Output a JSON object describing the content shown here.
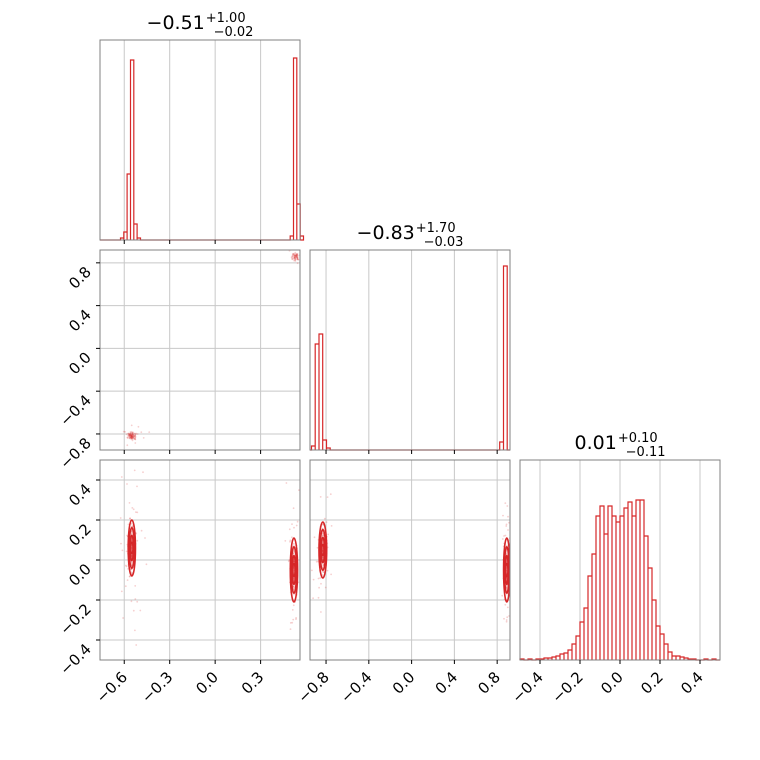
{
  "chart_data": {
    "type": "corner",
    "color": "#d62728",
    "grid": true,
    "parameters": [
      {
        "title": {
          "median": "−0.51",
          "plus": "+1.00",
          "minus": "−0.02"
        },
        "axis_range": [
          -0.76,
          0.56
        ],
        "x_ticks": [
          {
            "value": -0.6,
            "label": "−0.6"
          },
          {
            "value": -0.3,
            "label": "−0.3"
          },
          {
            "value": 0.0,
            "label": "0.0"
          },
          {
            "value": 0.3,
            "label": "0.3"
          }
        ],
        "histogram": {
          "bin_width": 0.022,
          "bins": [
            [
              -0.625,
              0.01
            ],
            [
              -0.603,
              0.04
            ],
            [
              -0.581,
              0.33
            ],
            [
              -0.559,
              0.9
            ],
            [
              -0.537,
              0.08
            ],
            [
              -0.515,
              0.01
            ],
            [
              0.495,
              0.02
            ],
            [
              0.517,
              0.91
            ],
            [
              0.539,
              0.18
            ],
            [
              0.561,
              0.02
            ]
          ]
        }
      },
      {
        "title": {
          "median": "−0.83",
          "plus": "+1.70",
          "minus": "−0.03"
        },
        "axis_range": [
          -0.95,
          0.92
        ],
        "x_ticks": [
          {
            "value": -0.8,
            "label": "−0.8"
          },
          {
            "value": -0.4,
            "label": "−0.4"
          },
          {
            "value": 0.0,
            "label": "0.0"
          },
          {
            "value": 0.4,
            "label": "0.4"
          },
          {
            "value": 0.8,
            "label": "0.8"
          }
        ],
        "y_ticks": [
          {
            "value": 0.8,
            "label": "0.8"
          },
          {
            "value": 0.4,
            "label": "0.4"
          },
          {
            "value": 0.0,
            "label": "0.0"
          },
          {
            "value": -0.4,
            "label": "−0.4"
          },
          {
            "value": -0.8,
            "label": "−0.8"
          }
        ],
        "histogram": {
          "bin_width": 0.035,
          "bins": [
            [
              -0.936,
              0.02
            ],
            [
              -0.901,
              0.53
            ],
            [
              -0.866,
              0.58
            ],
            [
              -0.831,
              0.05
            ],
            [
              -0.796,
              0.01
            ],
            [
              0.824,
              0.04
            ],
            [
              0.859,
              0.92
            ]
          ]
        }
      },
      {
        "title": {
          "median": "0.01",
          "plus": "+0.10",
          "minus": "−0.11"
        },
        "axis_range": [
          -0.5,
          0.5
        ],
        "x_ticks": [
          {
            "value": -0.4,
            "label": "−0.4"
          },
          {
            "value": -0.2,
            "label": "−0.2"
          },
          {
            "value": 0.0,
            "label": "0.0"
          },
          {
            "value": 0.2,
            "label": "0.2"
          },
          {
            "value": 0.4,
            "label": "0.4"
          }
        ],
        "y_ticks": [
          {
            "value": 0.4,
            "label": "0.4"
          },
          {
            "value": 0.2,
            "label": "0.2"
          },
          {
            "value": 0.0,
            "label": "0.0"
          },
          {
            "value": -0.2,
            "label": "−0.2"
          },
          {
            "value": -0.4,
            "label": "−0.4"
          }
        ],
        "histogram": {
          "bin_width": 0.02,
          "bins": [
            [
              -0.5,
              0.005
            ],
            [
              -0.48,
              0.0
            ],
            [
              -0.46,
              0.005
            ],
            [
              -0.44,
              0.0
            ],
            [
              -0.42,
              0.005
            ],
            [
              -0.4,
              0.005
            ],
            [
              -0.38,
              0.01
            ],
            [
              -0.36,
              0.01
            ],
            [
              -0.34,
              0.015
            ],
            [
              -0.32,
              0.02
            ],
            [
              -0.3,
              0.03
            ],
            [
              -0.28,
              0.035
            ],
            [
              -0.26,
              0.05
            ],
            [
              -0.24,
              0.08
            ],
            [
              -0.22,
              0.12
            ],
            [
              -0.2,
              0.19
            ],
            [
              -0.18,
              0.26
            ],
            [
              -0.16,
              0.42
            ],
            [
              -0.14,
              0.53
            ],
            [
              -0.12,
              0.72
            ],
            [
              -0.1,
              0.77
            ],
            [
              -0.08,
              0.63
            ],
            [
              -0.06,
              0.77
            ],
            [
              -0.04,
              0.72
            ],
            [
              -0.02,
              0.69
            ],
            [
              0.0,
              0.72
            ],
            [
              0.02,
              0.76
            ],
            [
              0.04,
              0.79
            ],
            [
              0.06,
              0.72
            ],
            [
              0.08,
              0.8
            ],
            [
              0.1,
              0.8
            ],
            [
              0.12,
              0.62
            ],
            [
              0.14,
              0.46
            ],
            [
              0.16,
              0.3
            ],
            [
              0.18,
              0.17
            ],
            [
              0.2,
              0.13
            ],
            [
              0.22,
              0.08
            ],
            [
              0.24,
              0.04
            ],
            [
              0.26,
              0.02
            ],
            [
              0.28,
              0.02
            ],
            [
              0.3,
              0.015
            ],
            [
              0.32,
              0.01
            ],
            [
              0.34,
              0.005
            ],
            [
              0.36,
              0.005
            ],
            [
              0.38,
              0.0
            ],
            [
              0.4,
              0.0
            ],
            [
              0.42,
              0.005
            ],
            [
              0.44,
              0.0
            ],
            [
              0.46,
              0.005
            ],
            [
              0.48,
              0.0
            ]
          ]
        }
      }
    ],
    "pair_panels": [
      {
        "name": "p1-vs-p2",
        "x_param": 0,
        "y_param": 1,
        "clusters": [
          {
            "x": -0.55,
            "y": -0.82,
            "sx": 0.018,
            "sy": 0.022,
            "n": 70,
            "contours": false
          },
          {
            "x": 0.53,
            "y": 0.86,
            "sx": 0.012,
            "sy": 0.02,
            "n": 45,
            "contours": false
          }
        ]
      },
      {
        "name": "p1-vs-p3",
        "x_param": 0,
        "y_param": 2,
        "clusters": [
          {
            "x": -0.55,
            "y": 0.06,
            "sx": 0.012,
            "sy": 0.07,
            "n": 140,
            "contours": true
          },
          {
            "x": 0.52,
            "y": -0.05,
            "sx": 0.012,
            "sy": 0.08,
            "n": 120,
            "contours": true
          }
        ]
      },
      {
        "name": "p2-vs-p3",
        "x_param": 1,
        "y_param": 2,
        "clusters": [
          {
            "x": -0.83,
            "y": 0.05,
            "sx": 0.018,
            "sy": 0.07,
            "n": 140,
            "contours": true
          },
          {
            "x": 0.89,
            "y": -0.05,
            "sx": 0.015,
            "sy": 0.08,
            "n": 120,
            "contours": true
          }
        ]
      }
    ]
  }
}
